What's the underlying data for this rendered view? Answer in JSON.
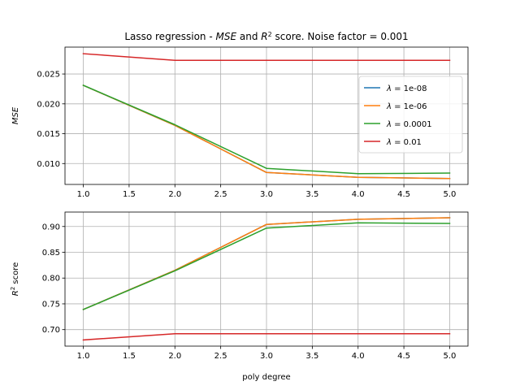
{
  "chart_data": [
    {
      "type": "line",
      "title_parts": [
        {
          "text": "Lasso regression - ",
          "italic": false
        },
        {
          "text": "MSE",
          "italic": true
        },
        {
          "text": " and ",
          "italic": false
        },
        {
          "text": "R",
          "italic": true
        },
        {
          "text": "2",
          "sup": true
        },
        {
          "text": " score. Noise factor = 0.001",
          "italic": false
        }
      ],
      "ylabel": "MSE",
      "xlabel": "",
      "x": [
        1,
        2,
        3,
        4,
        5
      ],
      "xlim": [
        0.8,
        5.2
      ],
      "ylim": [
        0.0065,
        0.0295
      ],
      "xticks": [
        "1.0",
        "1.5",
        "2.0",
        "2.5",
        "3.0",
        "3.5",
        "4.0",
        "4.5",
        "5.0"
      ],
      "yticks": [
        "0.010",
        "0.015",
        "0.020",
        "0.025"
      ],
      "grid": true,
      "legend": "right",
      "series": [
        {
          "name": "1e-08",
          "color": "#1f77b4",
          "values": [
            0.0231,
            0.0164,
            0.0085,
            0.0077,
            0.0075
          ]
        },
        {
          "name": "1e-06",
          "color": "#ff7f0e",
          "values": [
            0.0231,
            0.0164,
            0.0085,
            0.0077,
            0.0075
          ]
        },
        {
          "name": "0.0001",
          "color": "#2ca02c",
          "values": [
            0.0231,
            0.0165,
            0.0092,
            0.0083,
            0.0084
          ]
        },
        {
          "name": "0.01",
          "color": "#d62728",
          "values": [
            0.0284,
            0.0273,
            0.0273,
            0.0273,
            0.0273
          ]
        }
      ]
    },
    {
      "type": "line",
      "ylabel_parts": [
        {
          "text": "R",
          "italic": true
        },
        {
          "text": "2",
          "sup": true
        },
        {
          "text": " score",
          "italic": false
        }
      ],
      "xlabel": "poly degree",
      "x": [
        1,
        2,
        3,
        4,
        5
      ],
      "xlim": [
        0.8,
        5.2
      ],
      "ylim": [
        0.668,
        0.928
      ],
      "xticks": [
        "1.0",
        "1.5",
        "2.0",
        "2.5",
        "3.0",
        "3.5",
        "4.0",
        "4.5",
        "5.0"
      ],
      "yticks": [
        "0.70",
        "0.75",
        "0.80",
        "0.85",
        "0.90"
      ],
      "grid": true,
      "series": [
        {
          "name": "1e-08",
          "color": "#1f77b4",
          "values": [
            0.739,
            0.815,
            0.904,
            0.914,
            0.917
          ]
        },
        {
          "name": "1e-06",
          "color": "#ff7f0e",
          "values": [
            0.739,
            0.815,
            0.904,
            0.914,
            0.917
          ]
        },
        {
          "name": "0.0001",
          "color": "#2ca02c",
          "values": [
            0.739,
            0.814,
            0.897,
            0.907,
            0.906
          ]
        },
        {
          "name": "0.01",
          "color": "#d62728",
          "values": [
            0.68,
            0.692,
            0.692,
            0.692,
            0.692
          ]
        }
      ]
    }
  ]
}
